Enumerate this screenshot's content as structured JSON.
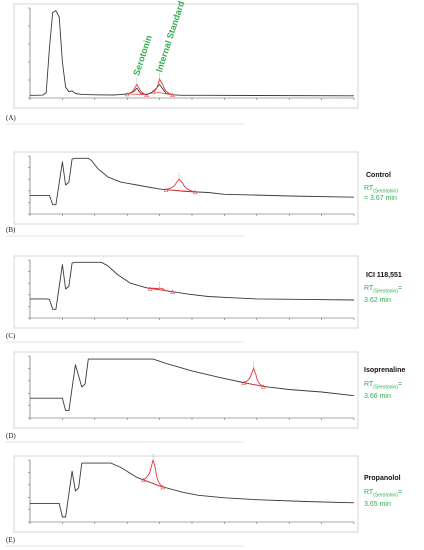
{
  "figure": {
    "panels": [
      {
        "letter": "(A)",
        "peak_labels": [
          "Serotonin",
          "Internal Standard"
        ]
      },
      {
        "letter": "(B)",
        "title": "Control",
        "rt_prefix": "RT",
        "rt_sub": "(Serotonin)",
        "rt_line1_suffix": "",
        "rt_line2": "= 3.67 min"
      },
      {
        "letter": "(C)",
        "title": "ICI  118,551",
        "rt_prefix": "RT",
        "rt_sub": "(Serotonin)",
        "rt_line1_suffix": "=",
        "rt_line2": "3.62 min"
      },
      {
        "letter": "(D)",
        "title": "Isoprenaline",
        "rt_prefix": "RT",
        "rt_sub": "(Serotonin)",
        "rt_line1_suffix": "=",
        "rt_line2": "3.66 min"
      },
      {
        "letter": "(E)",
        "title": "Propanolol",
        "rt_prefix": "RT",
        "rt_sub": "(Serotonin)",
        "rt_line1_suffix": "=",
        "rt_line2": "3.65 min"
      }
    ]
  },
  "colors": {
    "trace": "#3a3a3a",
    "peak": "#e8333a",
    "accent": "#2fae4f",
    "axis": "#555555"
  },
  "chart_data": [
    {
      "type": "line",
      "panel": "A",
      "series": [
        {
          "points": [
            [
              0,
              3
            ],
            [
              2,
              3
            ],
            [
              4,
              3.2
            ],
            [
              5,
              6
            ],
            [
              6,
              55
            ],
            [
              7,
              95
            ],
            [
              8,
              97
            ],
            [
              9,
              90
            ],
            [
              10,
              40
            ],
            [
              11,
              12
            ],
            [
              12,
              7
            ],
            [
              13,
              8
            ],
            [
              14,
              5
            ],
            [
              16,
              4
            ],
            [
              20,
              3.5
            ],
            [
              26,
              3.3
            ],
            [
              28,
              4
            ],
            [
              30,
              4.5
            ],
            [
              32,
              7
            ],
            [
              33,
              11
            ],
            [
              34,
              5.5
            ],
            [
              36,
              3.6
            ],
            [
              38,
              7
            ],
            [
              40,
              15
            ],
            [
              41,
              10
            ],
            [
              42,
              5
            ],
            [
              44,
              3.6
            ],
            [
              47,
              3
            ],
            [
              55,
              3
            ],
            [
              70,
              2.8
            ],
            [
              100,
              2.5
            ]
          ]
        }
      ],
      "peaks": [
        {
          "name": "Serotonin",
          "apex": 33,
          "height": 11,
          "baseline": [
            30,
            36
          ]
        },
        {
          "name": "Internal Standard",
          "apex": 40,
          "height": 15,
          "baseline": [
            38,
            44
          ]
        }
      ],
      "xlim": [
        0,
        100
      ],
      "ylim": [
        0,
        100
      ]
    },
    {
      "type": "line",
      "panel": "B",
      "series": [
        {
          "points": [
            [
              0,
              32
            ],
            [
              5,
              32
            ],
            [
              6,
              32
            ],
            [
              7,
              16
            ],
            [
              8,
              16
            ],
            [
              10,
              90
            ],
            [
              11,
              50
            ],
            [
              12,
              55
            ],
            [
              13,
              95
            ],
            [
              14,
              96
            ],
            [
              18,
              96
            ],
            [
              19,
              92
            ],
            [
              21,
              78
            ],
            [
              24,
              64
            ],
            [
              28,
              55
            ],
            [
              33,
              50
            ],
            [
              40,
              43
            ],
            [
              48,
              39
            ],
            [
              55,
              37
            ],
            [
              60,
              34
            ],
            [
              68,
              33
            ],
            [
              80,
              31
            ],
            [
              100,
              29
            ]
          ]
        }
      ],
      "peaks": [
        {
          "name": "Serotonin",
          "apex": 46,
          "height": 20,
          "baseline": [
            42,
            51
          ]
        }
      ],
      "xlim": [
        0,
        100
      ],
      "ylim": [
        0,
        100
      ]
    },
    {
      "type": "line",
      "panel": "C",
      "series": [
        {
          "points": [
            [
              0,
              33
            ],
            [
              5,
              33
            ],
            [
              6,
              32
            ],
            [
              7,
              15
            ],
            [
              8,
              15
            ],
            [
              10,
              92
            ],
            [
              11,
              50
            ],
            [
              12,
              55
            ],
            [
              13,
              95
            ],
            [
              14,
              96
            ],
            [
              22,
              96
            ],
            [
              24,
              90
            ],
            [
              27,
              75
            ],
            [
              31,
              60
            ],
            [
              36,
              52
            ],
            [
              42,
              47
            ],
            [
              49,
              41
            ],
            [
              55,
              37
            ],
            [
              62,
              35
            ],
            [
              70,
              33
            ],
            [
              85,
              32
            ],
            [
              100,
              31
            ]
          ]
        }
      ],
      "peaks": [
        {
          "name": "Serotonin",
          "apex": 40,
          "height": 3,
          "baseline": [
            37,
            44
          ]
        }
      ],
      "xlim": [
        0,
        100
      ],
      "ylim": [
        0,
        100
      ]
    },
    {
      "type": "line",
      "panel": "D",
      "series": [
        {
          "points": [
            [
              0,
              32
            ],
            [
              8,
              32
            ],
            [
              10,
              32
            ],
            [
              11,
              12
            ],
            [
              12,
              12
            ],
            [
              14,
              86
            ],
            [
              16,
              50
            ],
            [
              17,
              55
            ],
            [
              18,
              95
            ],
            [
              38,
              95
            ],
            [
              42,
              88
            ],
            [
              50,
              76
            ],
            [
              58,
              66
            ],
            [
              65,
              58
            ],
            [
              72,
              51
            ],
            [
              80,
              46
            ],
            [
              90,
              42
            ],
            [
              100,
              36
            ]
          ]
        }
      ],
      "peaks": [
        {
          "name": "Serotonin",
          "apex": 69,
          "height": 26,
          "baseline": [
            66,
            72
          ]
        }
      ],
      "xlim": [
        0,
        100
      ],
      "ylim": [
        0,
        100
      ]
    },
    {
      "type": "line",
      "panel": "E",
      "series": [
        {
          "points": [
            [
              0,
              30
            ],
            [
              7,
              30
            ],
            [
              9,
              30
            ],
            [
              10,
              8
            ],
            [
              11,
              8
            ],
            [
              13,
              82
            ],
            [
              14,
              50
            ],
            [
              15,
              55
            ],
            [
              16,
              95
            ],
            [
              25,
              95
            ],
            [
              28,
              88
            ],
            [
              33,
              72
            ],
            [
              40,
              58
            ],
            [
              47,
              48
            ],
            [
              52,
              43
            ],
            [
              60,
              39
            ],
            [
              70,
              36
            ],
            [
              85,
              33
            ],
            [
              100,
              31
            ]
          ]
        }
      ],
      "peaks": [
        {
          "name": "Serotonin",
          "apex": 38,
          "height": 38,
          "baseline": [
            35,
            41
          ]
        }
      ],
      "xlim": [
        0,
        100
      ],
      "ylim": [
        0,
        100
      ]
    }
  ]
}
